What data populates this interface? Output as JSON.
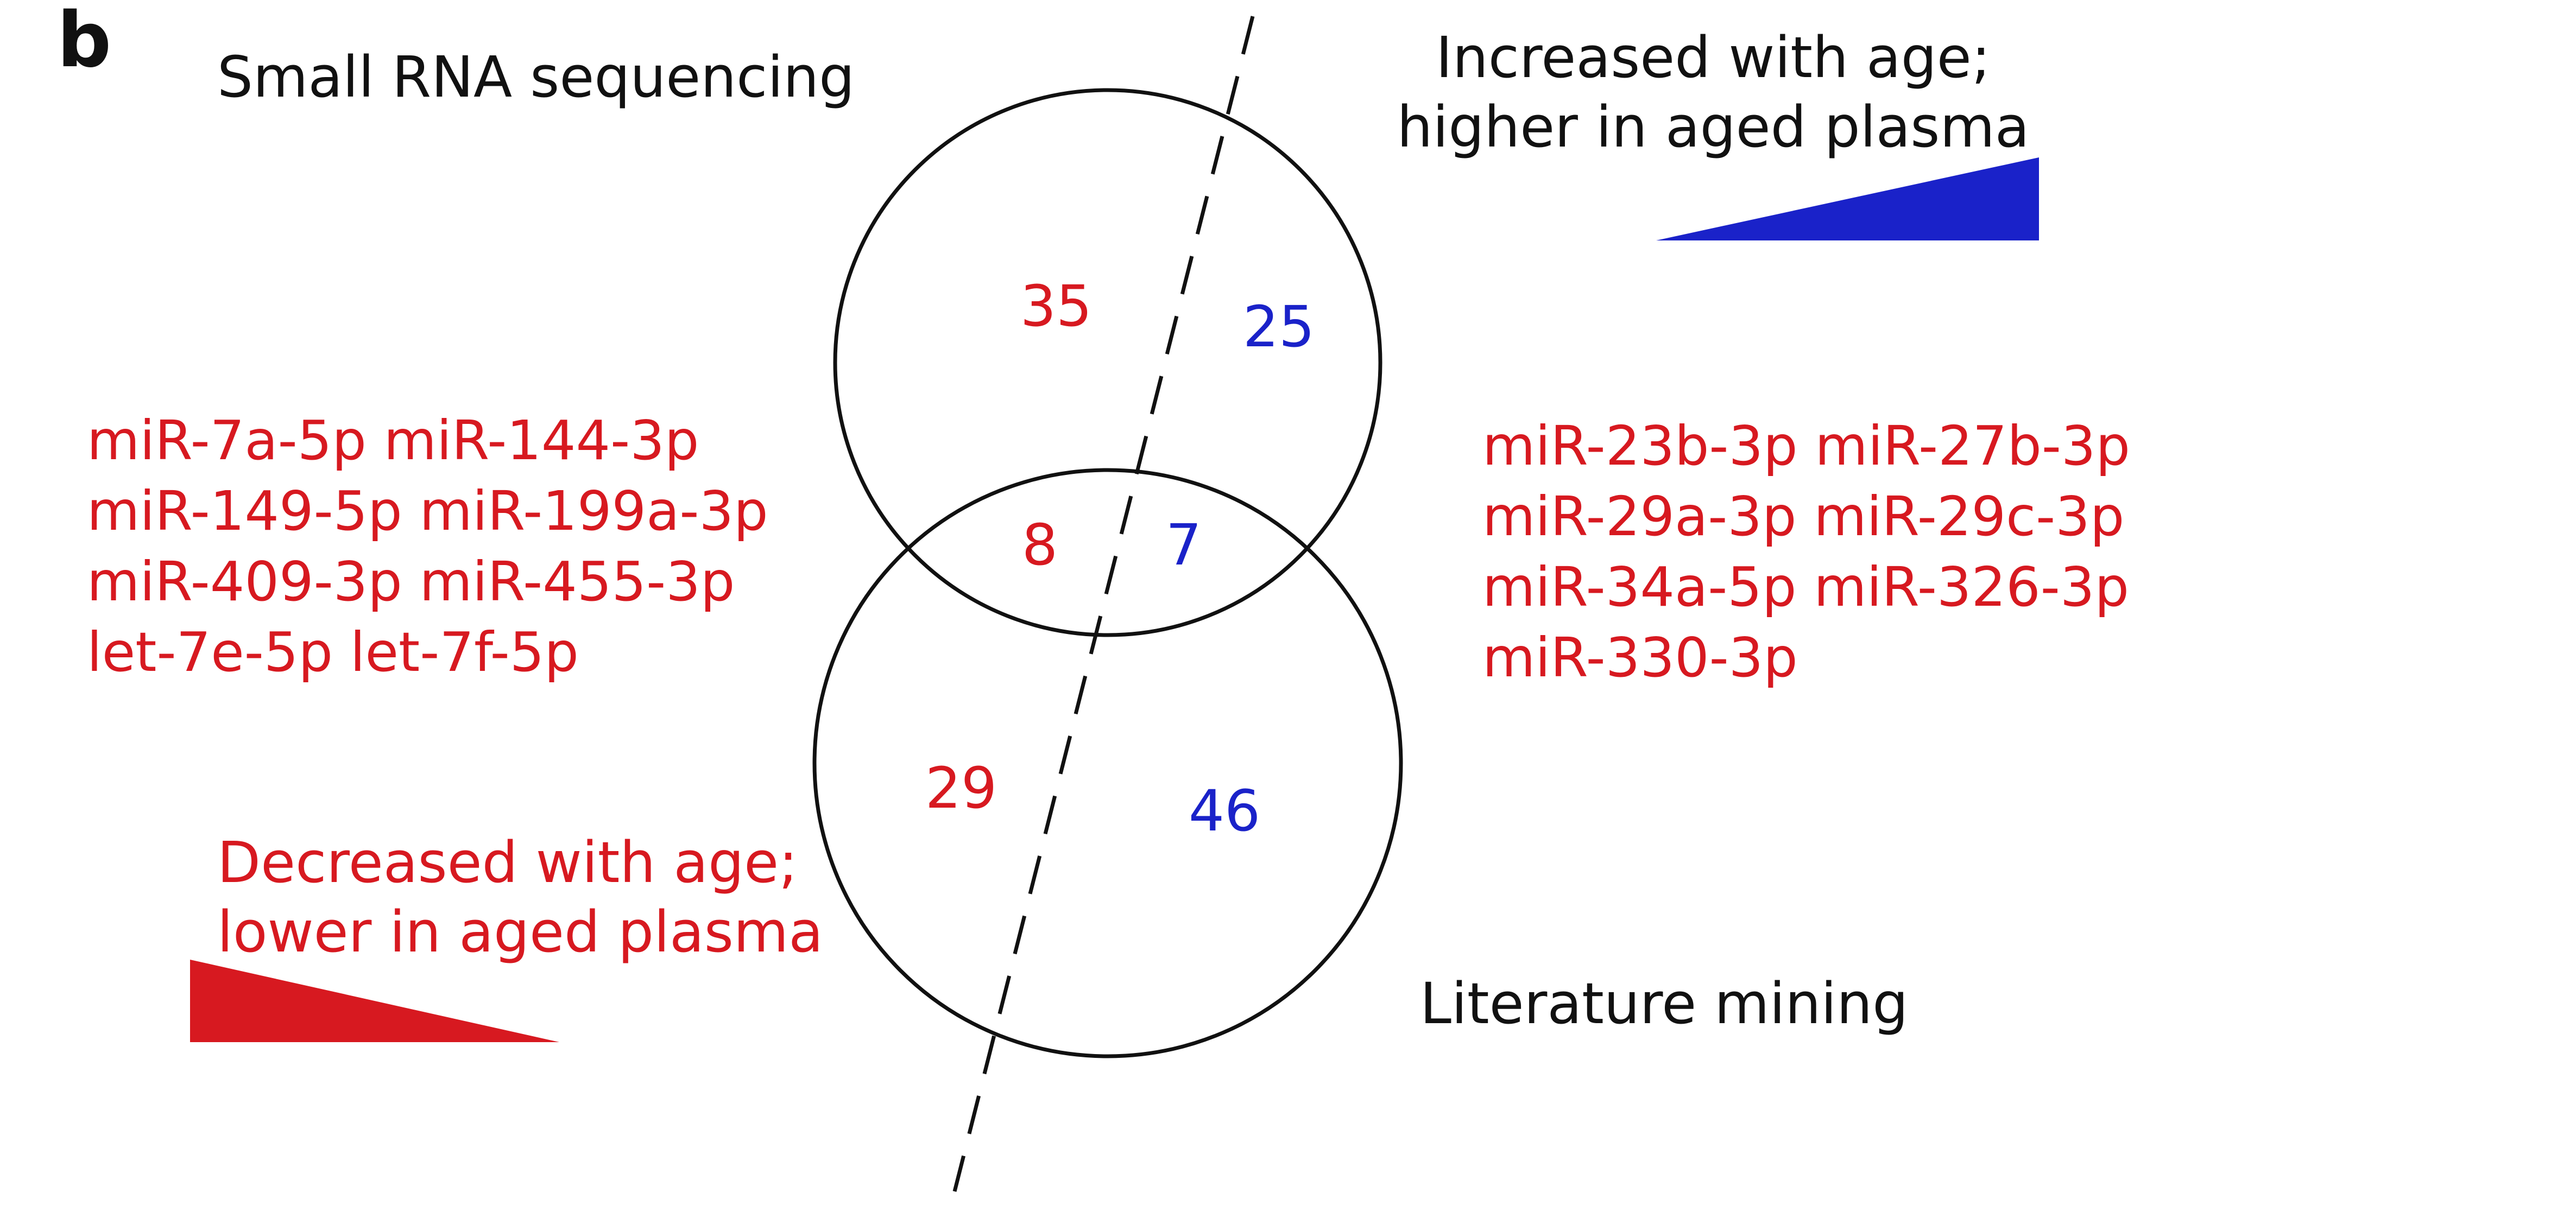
{
  "panel_label": "b",
  "sets": {
    "top": {
      "name": "Small RNA sequencing"
    },
    "bottom": {
      "name": "Literature mining"
    }
  },
  "counts": {
    "top_only_decreased": "35",
    "top_only_increased": "25",
    "overlap_decreased": "8",
    "overlap_increased": "7",
    "bottom_only_decreased": "29",
    "bottom_only_increased": "46"
  },
  "legend": {
    "increased": {
      "line1": "Increased with age;",
      "line2": "higher in aged plasma",
      "color": "#1a22c9"
    },
    "decreased": {
      "line1": "Decreased with age;",
      "line2": "lower in aged plasma",
      "color": "#d71920"
    }
  },
  "mirna_left": [
    "miR-7a-5p miR-144-3p",
    "miR-149-5p miR-199a-3p",
    "miR-409-3p miR-455-3p",
    "let-7e-5p let-7f-5p"
  ],
  "mirna_right": [
    "miR-23b-3p miR-27b-3p",
    "miR-29a-3p miR-29c-3p",
    "miR-34a-5p miR-326-3p",
    "miR-330-3p"
  ]
}
